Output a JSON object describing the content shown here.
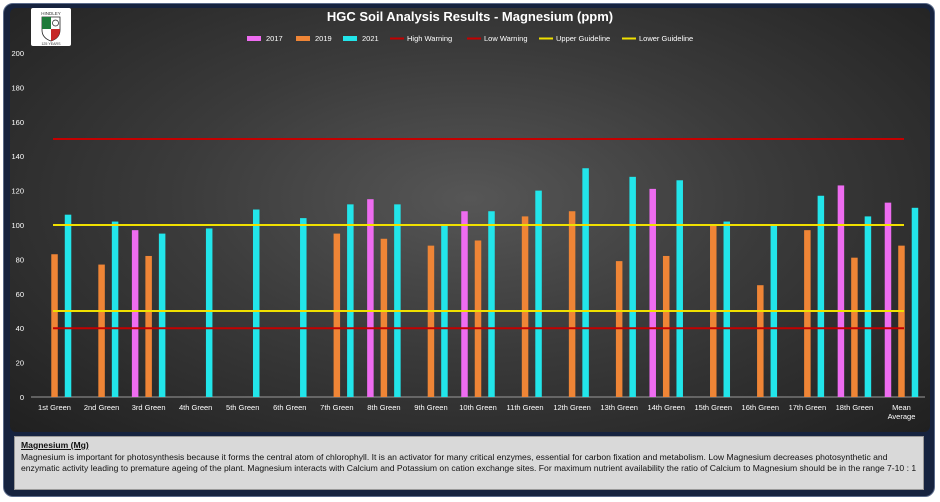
{
  "chart_data": {
    "type": "bar",
    "title": "HGC Soil Analysis Results - Magnesium (ppm)",
    "categories": [
      "1st Green",
      "2nd Green",
      "3rd Green",
      "4th Green",
      "5th Green",
      "6th Green",
      "7th Green",
      "8th Green",
      "9th Green",
      "10th Green",
      "11th Green",
      "12th Green",
      "13th Green",
      "14th Green",
      "15th Green",
      "16th Green",
      "17th Green",
      "18th Green",
      "Mean Average"
    ],
    "series": [
      {
        "name": "2017",
        "color": "#ee6cf0",
        "values": [
          null,
          null,
          97,
          null,
          null,
          null,
          null,
          115,
          null,
          108,
          null,
          null,
          null,
          121,
          null,
          null,
          null,
          123,
          113
        ]
      },
      {
        "name": "2019",
        "color": "#ef8536",
        "values": [
          83,
          77,
          82,
          null,
          null,
          null,
          95,
          92,
          88,
          91,
          105,
          108,
          79,
          82,
          100,
          65,
          97,
          81,
          88
        ]
      },
      {
        "name": "2021",
        "color": "#22e5ea",
        "values": [
          106,
          102,
          95,
          98,
          109,
          104,
          112,
          112,
          100,
          108,
          120,
          133,
          128,
          126,
          102,
          100,
          117,
          105,
          110
        ]
      }
    ],
    "lines": [
      {
        "name": "High Warning",
        "color": "#c40000",
        "value": 150
      },
      {
        "name": "Low Warning",
        "color": "#c40000",
        "value": 40
      },
      {
        "name": "Upper Guideline",
        "color": "#f0e000",
        "value": 100
      },
      {
        "name": "Lower Guideline",
        "color": "#f0e000",
        "value": 50
      }
    ],
    "ylim": [
      0,
      200
    ],
    "yticks": [
      0,
      20,
      40,
      60,
      80,
      100,
      120,
      140,
      160,
      180,
      200
    ],
    "legend": "top-center",
    "grid": false
  },
  "logo": {
    "text": "HINDLEY",
    "subtext": "125 YEARS"
  },
  "description": {
    "heading": "Magnesium (Mg)",
    "text": "Magnesium is important for photosynthesis because it forms the central atom of chlorophyll. It is an activator for many critical enzymes, essential for carbon fixation and metabolism. Low Magnesium decreases photosynthetic and enzymatic activity leading to premature ageing of the plant. Magnesium interacts with Calcium and Potassium on cation exchange sites. For maximum nutrient availability the ratio of Calcium to Magnesium should be in the range 7-10 : 1"
  }
}
